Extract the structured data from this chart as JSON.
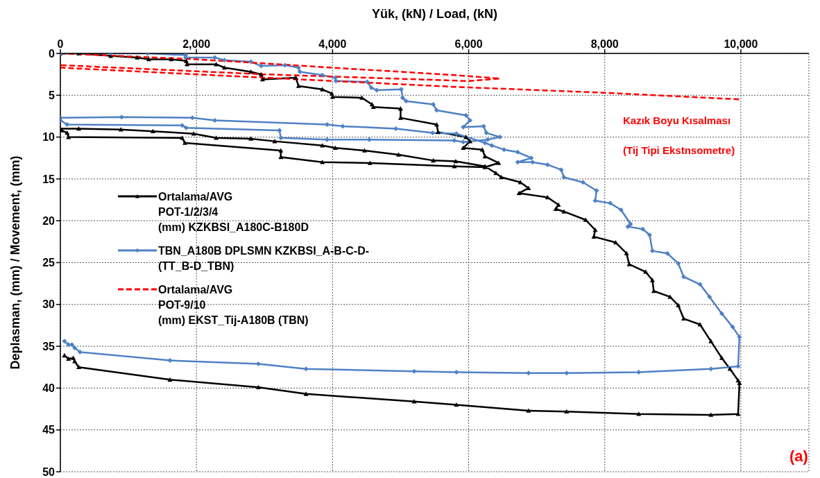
{
  "chart_data": {
    "type": "line",
    "xlabel": "Yük, (kN) / Load, (kN)",
    "ylabel": "Deplasman, (mm) /  Movement, (mm)",
    "xlim": [
      0,
      11000
    ],
    "xticks": [
      0,
      {
        "value": 2000,
        "label": "2,000"
      },
      {
        "value": 4000,
        "label": "4,000"
      },
      {
        "value": 6000,
        "label": "6,000"
      },
      {
        "value": 8000,
        "label": "8,000"
      },
      {
        "value": 10000,
        "label": "10,000"
      }
    ],
    "ylim": [
      50,
      0
    ],
    "yticks": [
      0,
      5,
      10,
      15,
      20,
      25,
      30,
      35,
      40,
      45,
      50
    ],
    "grid": true,
    "legend": "left",
    "annotations": [
      "Kazık Boyu Kısalması",
      "(Tij Tipi Ekstnsometre)",
      "(a)"
    ],
    "series": [
      {
        "name": "Ortalama/AVG\nPOT-1/2/3/4\n(mm) KZKBSI_A180C-B180D",
        "color": "#000000",
        "marker": "triangle",
        "line_style": "solid",
        "x": [
          0,
          270,
          740,
          1130,
          1300,
          1630,
          1850,
          1860,
          2290,
          2410,
          2800,
          2950,
          2970,
          3460,
          3500,
          3850,
          3990,
          4000,
          4430,
          4580,
          4600,
          5000,
          5000,
          5530,
          5550,
          5960,
          6020,
          5920,
          6200,
          6240,
          6440,
          6240,
          5790,
          4550,
          3850,
          3240,
          3240,
          1830,
          1790,
          120,
          100,
          20,
          0,
          270,
          890,
          1360,
          1960,
          2290,
          2800,
          3150,
          3850,
          4040,
          4470,
          4970,
          5480,
          5810,
          6240,
          6400,
          6480,
          6760,
          6880,
          6740,
          7160,
          7320,
          7280,
          7400,
          7720,
          7860,
          7840,
          8160,
          8320,
          8360,
          8600,
          8700,
          8720,
          8960,
          9080,
          9160,
          9400,
          9560,
          9720,
          9840,
          9960,
          9980,
          9960,
          9560,
          8500,
          7440,
          6880,
          5820,
          5200,
          3610,
          2910,
          1610,
          270,
          210,
          190,
          120,
          60
        ],
        "values": [
          0,
          0,
          0.3,
          0.5,
          0.7,
          0.7,
          0.9,
          1.3,
          1.3,
          1.7,
          2.2,
          2.5,
          3.1,
          2.9,
          3.9,
          4.3,
          4.8,
          5.2,
          5.3,
          6.1,
          6.4,
          6.6,
          7.7,
          8.5,
          9.4,
          10.0,
          10.5,
          11.3,
          11.5,
          12.3,
          13.1,
          13.6,
          13.5,
          13.1,
          13.0,
          12.4,
          11.6,
          10.7,
          10.1,
          10.0,
          9.5,
          9.2,
          9.0,
          9.0,
          9.1,
          9.3,
          9.6,
          10.1,
          10.2,
          10.5,
          11.0,
          11.3,
          11.6,
          12.1,
          12.8,
          12.9,
          13.5,
          14.3,
          14.8,
          15.4,
          16.1,
          16.7,
          17.2,
          18.1,
          18.6,
          18.9,
          19.9,
          21.1,
          21.9,
          22.6,
          23.9,
          25.2,
          26.1,
          27.1,
          28.4,
          29.1,
          30.1,
          31.7,
          32.4,
          34.4,
          36.4,
          37.7,
          39.1,
          39.4,
          43.1,
          43.2,
          43.1,
          42.8,
          42.7,
          42.0,
          41.6,
          40.7,
          39.9,
          39.0,
          37.5,
          36.8,
          36.4,
          36.5,
          36.1
        ]
      },
      {
        "name": "TBN_A180B DPLSMN KZKBSI_A-B-C-D-\n(TT_B-D_TBN)",
        "color": "#4f81c4",
        "marker": "diamond",
        "line_style": "solid",
        "x": [
          0,
          740,
          1280,
          1840,
          1840,
          2270,
          2410,
          2800,
          2950,
          3300,
          3500,
          3520,
          3850,
          4040,
          4050,
          4510,
          4570,
          4650,
          5010,
          5030,
          5080,
          5480,
          5530,
          5960,
          6020,
          5920,
          6220,
          6260,
          6460,
          6280,
          5920,
          5790,
          4540,
          3920,
          3240,
          3220,
          1850,
          1790,
          100,
          0,
          0,
          900,
          1940,
          2270,
          3920,
          4150,
          4930,
          5470,
          5820,
          6240,
          6340,
          6520,
          6720,
          6920,
          6720,
          6940,
          7160,
          7360,
          7400,
          7680,
          7880,
          7860,
          8080,
          8240,
          8380,
          8340,
          8560,
          8660,
          8700,
          8920,
          9080,
          9160,
          9400,
          9540,
          9720,
          9880,
          9980,
          9960,
          9560,
          8500,
          7440,
          6880,
          5820,
          5200,
          3610,
          2910,
          1610,
          290,
          210,
          170,
          120,
          60
        ],
        "values": [
          0,
          0,
          0,
          0.2,
          0.5,
          0.5,
          0.8,
          1.0,
          1.5,
          1.4,
          1.7,
          2.2,
          2.6,
          2.9,
          3.3,
          3.4,
          4.1,
          4.4,
          4.3,
          5.3,
          5.7,
          6.1,
          6.8,
          7.4,
          8.0,
          8.8,
          8.7,
          9.5,
          10.0,
          10.3,
          10.6,
          10.4,
          10.3,
          10.3,
          10.1,
          9.2,
          8.9,
          8.6,
          8.5,
          8.0,
          7.7,
          7.6,
          7.7,
          8.0,
          8.5,
          8.7,
          9.0,
          9.5,
          9.6,
          10.7,
          11.0,
          11.5,
          11.8,
          12.5,
          13.0,
          13.0,
          13.3,
          13.9,
          14.8,
          15.4,
          16.4,
          17.6,
          17.9,
          18.7,
          20.4,
          20.7,
          21.0,
          21.7,
          23.6,
          23.9,
          25.1,
          26.7,
          27.6,
          29.1,
          31.1,
          32.7,
          33.9,
          37.4,
          37.7,
          38.1,
          38.2,
          38.2,
          38.1,
          38.0,
          37.7,
          37.1,
          36.7,
          35.7,
          35.2,
          34.8,
          34.8,
          34.4
        ]
      },
      {
        "name": "Ortalama/AVG\nPOT-9/10\n(mm) EKST_Tij-A180B (TBN)",
        "color": "#ff0000",
        "marker": "none",
        "line_style": "dashed",
        "x": [
          0,
          2000,
          4000,
          5800,
          6460,
          6000,
          3000,
          0,
          0,
          3000,
          5800,
          8000,
          10000
        ],
        "values": [
          0,
          0.7,
          1.7,
          2.6,
          3.0,
          3.3,
          2.5,
          1.4,
          1.7,
          2.9,
          4.0,
          4.7,
          5.5
        ]
      }
    ]
  }
}
